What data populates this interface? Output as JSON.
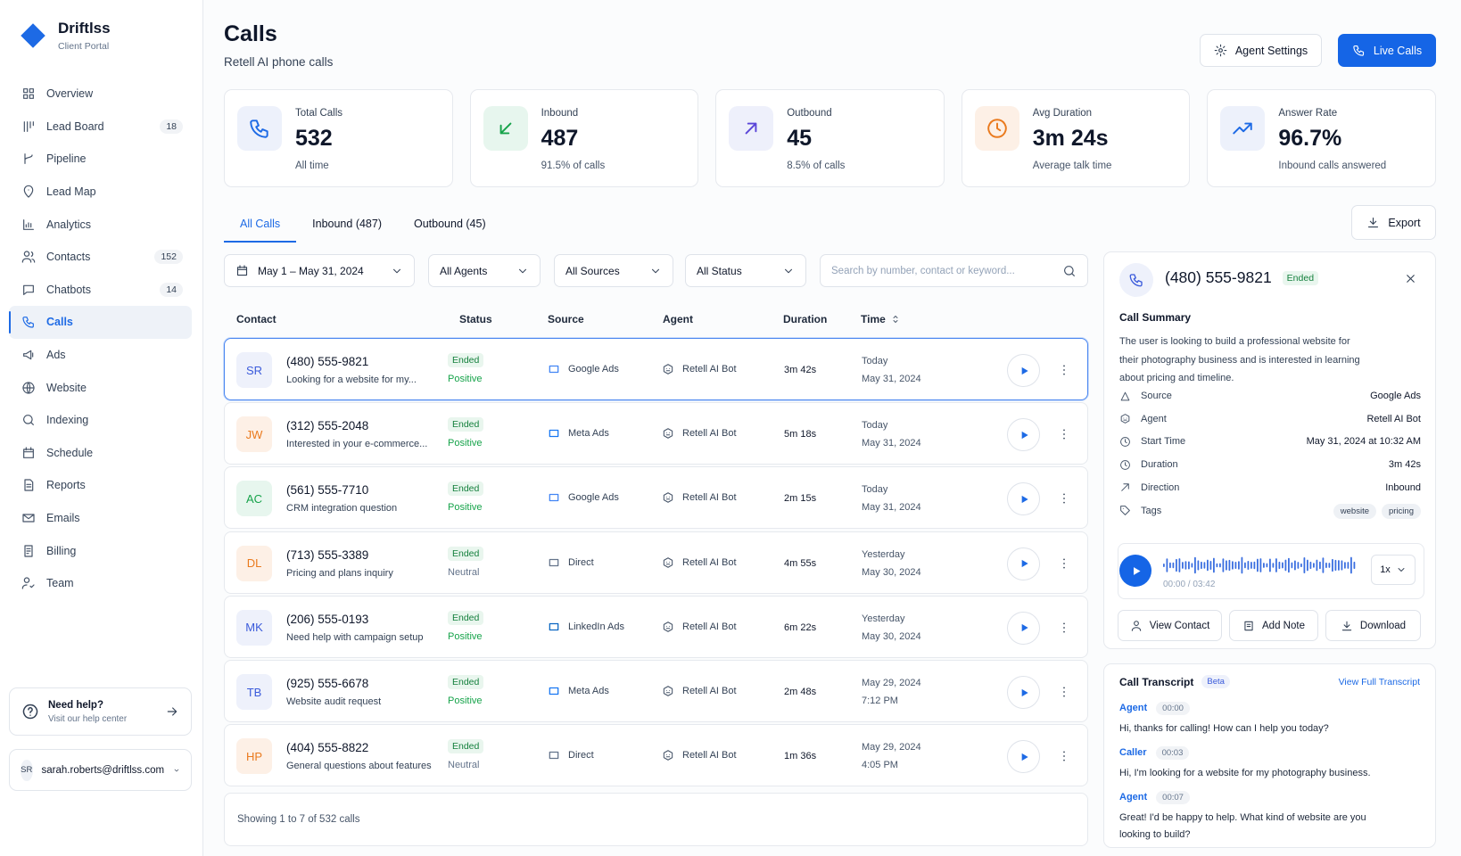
{
  "sidebar": {
    "brand": "Driftlss",
    "brand_sub": "Client Portal",
    "nav": [
      {
        "label": "Overview"
      },
      {
        "label": "Lead Board",
        "badge": 18
      },
      {
        "label": "Pipeline"
      },
      {
        "label": "Lead Map"
      },
      {
        "label": "Analytics"
      },
      {
        "label": "Contacts",
        "badge": 152
      },
      {
        "label": "Chatbots",
        "badge": 14
      },
      {
        "label": "Calls",
        "active": true
      },
      {
        "label": "Ads"
      },
      {
        "label": "Website"
      },
      {
        "label": "Indexing"
      },
      {
        "label": "Schedule"
      },
      {
        "label": "Reports"
      },
      {
        "label": "Emails"
      },
      {
        "label": "Billing"
      },
      {
        "label": "Team"
      }
    ],
    "help": {
      "title": "Need help?",
      "sub": "Visit our help center"
    },
    "user": {
      "initials": "SR",
      "email": "sarah.roberts@driftlss.com"
    }
  },
  "header": {
    "title": "Calls",
    "subtitle": "Retell AI phone calls",
    "settings_button": "Agent Settings",
    "live_button": "Live Calls"
  },
  "stats": [
    {
      "label": "Total Calls",
      "value": 532,
      "sub": "All time",
      "color": "#1d6ae5",
      "bg": "#edf1fb"
    },
    {
      "label": "Inbound",
      "value": 487,
      "sub": "91.5% of calls",
      "color": "#16a34a",
      "bg": "#e7f6ee"
    },
    {
      "label": "Outbound",
      "value": 45,
      "sub": "8.5% of calls",
      "color": "#5b46d8",
      "bg": "#eef0fb"
    },
    {
      "label": "Avg Duration",
      "value": "3m 24s",
      "sub": "Average talk time",
      "color": "#ea7a1e",
      "bg": "#fdf0e6"
    },
    {
      "label": "Answer Rate",
      "value": "96.7%",
      "sub": "Inbound calls answered",
      "color": "#1d6ae5",
      "bg": "#edf1fb"
    }
  ],
  "tabs": [
    "All Calls",
    "Inbound (487)",
    "Outbound (45)"
  ],
  "export": "Export",
  "filters": [
    "May 1 – May 31, 2024",
    "All Agents",
    "All Sources",
    "All Status"
  ],
  "search_placeholder": "Search by number, contact or keyword...",
  "table": {
    "columns": [
      "Contact",
      "Status",
      "Source",
      "Agent",
      "Duration",
      "Time"
    ],
    "rows": [
      {
        "initials": "SR",
        "avatar_color": "#3b5bdb",
        "avatar_bg": "#eef1fb",
        "phone": "(480) 555-9821",
        "note": "Looking for a website for my...",
        "status": "Ended",
        "sentiment": "Positive",
        "source": "Google Ads",
        "source_color": "#4285f4",
        "agent": "Retell AI Bot",
        "duration": "3m 42s",
        "day": "Today",
        "date": "May 31, 2024"
      },
      {
        "initials": "JW",
        "avatar_color": "#ea7a1e",
        "avatar_bg": "#fdf0e6",
        "phone": "(312) 555-2048",
        "note": "Interested in your e-commerce...",
        "status": "Ended",
        "sentiment": "Positive",
        "source": "Meta Ads",
        "source_color": "#1877f2",
        "agent": "Retell AI Bot",
        "duration": "5m 18s",
        "day": "Today",
        "date": "May 31, 2024"
      },
      {
        "initials": "AC",
        "avatar_color": "#16a34a",
        "avatar_bg": "#e7f6ee",
        "phone": "(561) 555-7710",
        "note": "CRM integration question",
        "status": "Ended",
        "sentiment": "Positive",
        "source": "Google Ads",
        "source_color": "#4285f4",
        "agent": "Retell AI Bot",
        "duration": "2m 15s",
        "day": "Today",
        "date": "May 31, 2024"
      },
      {
        "initials": "DL",
        "avatar_color": "#ea7a1e",
        "avatar_bg": "#fdf0e6",
        "phone": "(713) 555-3389",
        "note": "Pricing and plans inquiry",
        "status": "Ended",
        "sentiment": "Neutral",
        "source": "Direct",
        "source_color": "#64748b",
        "agent": "Retell AI Bot",
        "duration": "4m 55s",
        "day": "Yesterday",
        "date": "May 30, 2024"
      },
      {
        "initials": "MK",
        "avatar_color": "#3b5bdb",
        "avatar_bg": "#eef1fb",
        "phone": "(206) 555-0193",
        "note": "Need help with campaign setup",
        "status": "Ended",
        "sentiment": "Positive",
        "source": "LinkedIn Ads",
        "source_color": "#0a66c2",
        "agent": "Retell AI Bot",
        "duration": "6m 22s",
        "day": "Yesterday",
        "date": "May 30, 2024"
      },
      {
        "initials": "TB",
        "avatar_color": "#3b5bdb",
        "avatar_bg": "#eef1fb",
        "phone": "(925) 555-6678",
        "note": "Website audit request",
        "status": "Ended",
        "sentiment": "Positive",
        "source": "Meta Ads",
        "source_color": "#1877f2",
        "agent": "Retell AI Bot",
        "duration": "2m 48s",
        "day": "May 29, 2024",
        "date": "7:12 PM"
      },
      {
        "initials": "HP",
        "avatar_color": "#ea7a1e",
        "avatar_bg": "#fdf0e6",
        "phone": "(404) 555-8822",
        "note": "General questions about features",
        "status": "Ended",
        "sentiment": "Neutral",
        "source": "Direct",
        "source_color": "#64748b",
        "agent": "Retell AI Bot",
        "duration": "1m 36s",
        "day": "May 29, 2024",
        "date": "4:05 PM"
      }
    ],
    "footer": "Showing 1 to 7 of 532 calls"
  },
  "detail": {
    "phone": "(480) 555-9821",
    "status": "Ended",
    "summary_title": "Call Summary",
    "summary": "The user is looking to build a professional website for their photography business and is interested in learning about pricing and timeline.",
    "fields": [
      {
        "label": "Source",
        "value": "Google Ads"
      },
      {
        "label": "Agent",
        "value": "Retell AI Bot"
      },
      {
        "label": "Start Time",
        "value": "May 31, 2024 at 10:32 AM"
      },
      {
        "label": "Duration",
        "value": "3m 42s"
      },
      {
        "label": "Direction",
        "value": "Inbound"
      },
      {
        "label": "Tags",
        "tags": [
          "website",
          "pricing"
        ]
      }
    ],
    "player_time": "00:00 / 03:42",
    "speed": "1x",
    "actions": [
      "View Contact",
      "Add Note",
      "Download"
    ]
  },
  "transcript": {
    "title": "Call Transcript",
    "badge": "Beta",
    "link": "View Full Transcript",
    "entries": [
      {
        "speaker": "Agent",
        "time": "00:00",
        "text": "Hi, thanks for calling! How can I help you today?"
      },
      {
        "speaker": "Caller",
        "time": "00:03",
        "text": "Hi, I'm looking for a website for my photography business."
      },
      {
        "speaker": "Agent",
        "time": "00:07",
        "text": "Great! I'd be happy to help. What kind of website are you looking to build?"
      }
    ]
  }
}
